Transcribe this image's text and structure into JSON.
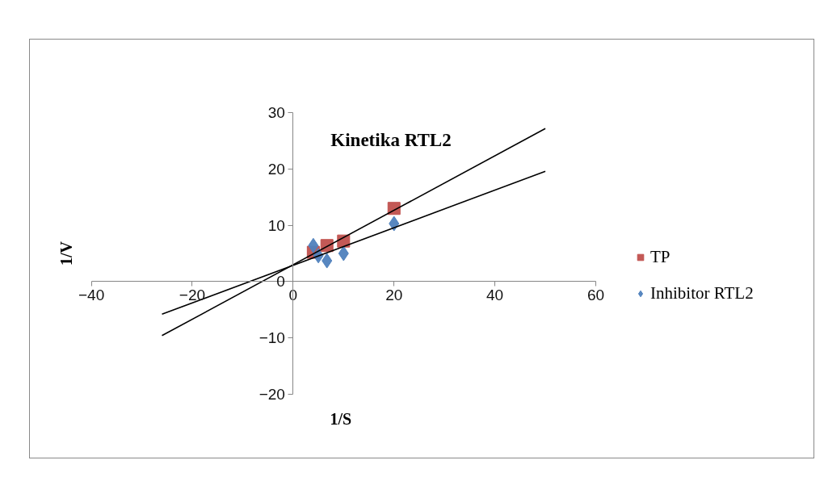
{
  "chart_data": {
    "type": "scatter",
    "title": "Kinetika RTL2",
    "xlabel": "1/S",
    "ylabel": "1/V",
    "xlim": [
      -40,
      60
    ],
    "ylim": [
      -20,
      30
    ],
    "xticks": [
      -40,
      -20,
      0,
      20,
      40,
      60
    ],
    "yticks": [
      -20,
      -10,
      0,
      10,
      20,
      30
    ],
    "grid": false,
    "legend": "right",
    "series": [
      {
        "name": "TP",
        "color": "#c0504d",
        "marker": "square",
        "x": [
          4,
          6.7,
          10,
          20
        ],
        "values": [
          5.2,
          6.4,
          7.2,
          13.0
        ]
      },
      {
        "name": "Inhibitor RTL2",
        "color": "#4f81bd",
        "marker": "diamond",
        "x": [
          4,
          5,
          6.7,
          10,
          20
        ],
        "values": [
          6.4,
          4.6,
          3.7,
          5.0,
          10.3
        ]
      },
      {
        "type": "line",
        "color": "#000000",
        "marker": "none",
        "x": [
          -26,
          50
        ],
        "values": [
          -9.6,
          27.2
        ]
      },
      {
        "type": "line",
        "color": "#000000",
        "marker": "none",
        "x": [
          -26,
          50
        ],
        "values": [
          -5.8,
          19.6
        ]
      }
    ]
  }
}
